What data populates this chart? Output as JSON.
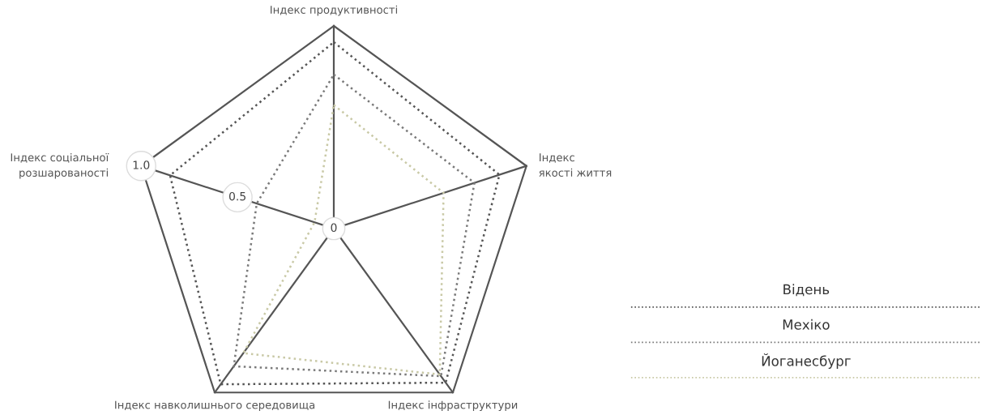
{
  "chart_data": {
    "type": "radar",
    "categories": [
      "Індекс продуктивності",
      "Індекс\nякості життя",
      "Індекс інфраструктури",
      "Індекс навколишнього середовища",
      "Індекс соціальної\nрозшарованості"
    ],
    "series": [
      {
        "name": "Відень",
        "color": "#555555",
        "values": [
          0.92,
          0.86,
          0.94,
          0.95,
          0.85
        ]
      },
      {
        "name": "Мехіко",
        "color": "#7a7a7a",
        "values": [
          0.76,
          0.73,
          0.9,
          0.84,
          0.4
        ]
      },
      {
        "name": "Йоганесбург",
        "color": "#c9c9a6",
        "values": [
          0.61,
          0.57,
          0.89,
          0.76,
          0.1
        ]
      }
    ],
    "ylim": [
      0,
      1
    ],
    "yticks": [
      0,
      0.5,
      {
        "value": 1,
        "label": "1.0"
      }
    ],
    "grid": "x",
    "legend": "bottom right",
    "line_style": "dotted",
    "marker": "none"
  }
}
